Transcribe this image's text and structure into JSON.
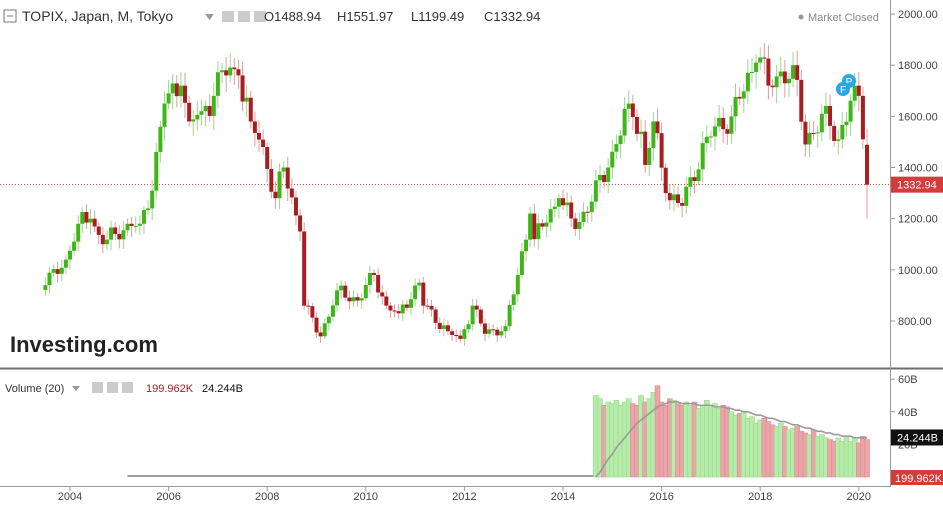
{
  "header": {
    "symbol": "TOPIX, Japan, M, Tokyo",
    "ohlc": {
      "open_label": "O",
      "open": "1488.94",
      "high_label": "H",
      "high": "1551.97",
      "low_label": "L",
      "low": "1199.49",
      "close_label": "C",
      "close": "1332.94"
    },
    "market_status": "Market Closed"
  },
  "volume_header": {
    "label": "Volume (20)",
    "value_red": "199.962K",
    "value_black": "24.244B"
  },
  "watermark": "Investing.com",
  "colors": {
    "up": "#3fb618",
    "down": "#a71d20",
    "vol_up": "#b6ecaa",
    "vol_down": "#e9a5a8",
    "ma_line": "#9b9b9b",
    "price_tag": "#d43b3b",
    "badge": "#2aa7e6"
  },
  "badges": [
    "P",
    "F"
  ],
  "chart_data": [
    {
      "type": "candlestick",
      "title": "TOPIX, Japan, M, Tokyo",
      "x_range": [
        "2003-07",
        "2020-03"
      ],
      "y_ticks": [
        800,
        1000,
        1200,
        1400,
        1600,
        1800,
        2000
      ],
      "x_tick_labels": [
        "2004",
        "2006",
        "2008",
        "2010",
        "2012",
        "2014",
        "2016",
        "2018",
        "2020"
      ],
      "last_price": 1332.94,
      "last_price_label": "1332.94",
      "grid": false,
      "series": [
        {
          "name": "TOPIX",
          "anchors": [
            [
              "2003-07",
              940
            ],
            [
              "2003-12",
              1040
            ],
            [
              "2004-03",
              1180
            ],
            [
              "2004-06",
              1200
            ],
            [
              "2004-09",
              1100
            ],
            [
              "2004-12",
              1140
            ],
            [
              "2005-03",
              1180
            ],
            [
              "2005-06",
              1180
            ],
            [
              "2005-08",
              1240
            ],
            [
              "2005-12",
              1650
            ],
            [
              "2006-04",
              1720
            ],
            [
              "2006-06",
              1580
            ],
            [
              "2006-09",
              1620
            ],
            [
              "2006-12",
              1680
            ],
            [
              "2007-02",
              1780
            ],
            [
              "2007-06",
              1760
            ],
            [
              "2007-09",
              1580
            ],
            [
              "2007-12",
              1480
            ],
            [
              "2008-03",
              1280
            ],
            [
              "2008-05",
              1400
            ],
            [
              "2008-09",
              1150
            ],
            [
              "2008-10",
              860
            ],
            [
              "2009-02",
              740
            ],
            [
              "2009-06",
              920
            ],
            [
              "2009-11",
              880
            ],
            [
              "2010-03",
              980
            ],
            [
              "2010-06",
              860
            ],
            [
              "2010-09",
              830
            ],
            [
              "2011-02",
              950
            ],
            [
              "2011-03",
              860
            ],
            [
              "2011-09",
              760
            ],
            [
              "2011-12",
              730
            ],
            [
              "2012-03",
              860
            ],
            [
              "2012-06",
              750
            ],
            [
              "2012-11",
              780
            ],
            [
              "2013-02",
              980
            ],
            [
              "2013-05",
              1220
            ],
            [
              "2013-06",
              1120
            ],
            [
              "2013-12",
              1280
            ],
            [
              "2014-04",
              1160
            ],
            [
              "2014-12",
              1400
            ],
            [
              "2015-05",
              1650
            ],
            [
              "2015-08",
              1540
            ],
            [
              "2015-09",
              1410
            ],
            [
              "2015-11",
              1580
            ],
            [
              "2016-02",
              1300
            ],
            [
              "2016-06",
              1250
            ],
            [
              "2016-12",
              1520
            ],
            [
              "2017-06",
              1600
            ],
            [
              "2017-12",
              1810
            ],
            [
              "2018-01",
              1830
            ],
            [
              "2018-03",
              1720
            ],
            [
              "2018-09",
              1800
            ],
            [
              "2018-12",
              1490
            ],
            [
              "2019-04",
              1610
            ],
            [
              "2019-08",
              1510
            ],
            [
              "2019-12",
              1720
            ],
            [
              "2020-01",
              1680
            ],
            [
              "2020-02",
              1510
            ],
            [
              "2020-03",
              1333
            ]
          ]
        }
      ]
    },
    {
      "type": "bar",
      "title": "Volume (20)",
      "y_ticks_labels": [
        "20B",
        "40B",
        "60B"
      ],
      "y_range": [
        0,
        65
      ],
      "unit": "B",
      "data_start": "2014-09",
      "series": [
        {
          "name": "Volume",
          "values_B": [
            50,
            48,
            44,
            46,
            45,
            47,
            44,
            46,
            48,
            45,
            44,
            50,
            46,
            48,
            52,
            56,
            46,
            44,
            48,
            47,
            45,
            44,
            46,
            44,
            46,
            42,
            44,
            47,
            43,
            45,
            42,
            44,
            43,
            40,
            38,
            39,
            40,
            36,
            37,
            33,
            35,
            36,
            34,
            32,
            31,
            33,
            31,
            29,
            30,
            31,
            28,
            27,
            26,
            29,
            25,
            26,
            24,
            23,
            22,
            24,
            22,
            25,
            22,
            24,
            21,
            25,
            23
          ]
        },
        {
          "name": "Volume MA (20)",
          "values_B": [
            0,
            3,
            7,
            11,
            14,
            18,
            21,
            24,
            27,
            30,
            33,
            35,
            37,
            39,
            41,
            43,
            44,
            45,
            46,
            46,
            46,
            45,
            45,
            45,
            45,
            44,
            44,
            44,
            44,
            43,
            43,
            43,
            42,
            42,
            41,
            41,
            40,
            40,
            39,
            38,
            38,
            37,
            36,
            36,
            35,
            34,
            34,
            33,
            32,
            32,
            31,
            30,
            30,
            29,
            28,
            28,
            27,
            27,
            26,
            26,
            25,
            25,
            25,
            24,
            24,
            24,
            24
          ]
        }
      ]
    }
  ]
}
